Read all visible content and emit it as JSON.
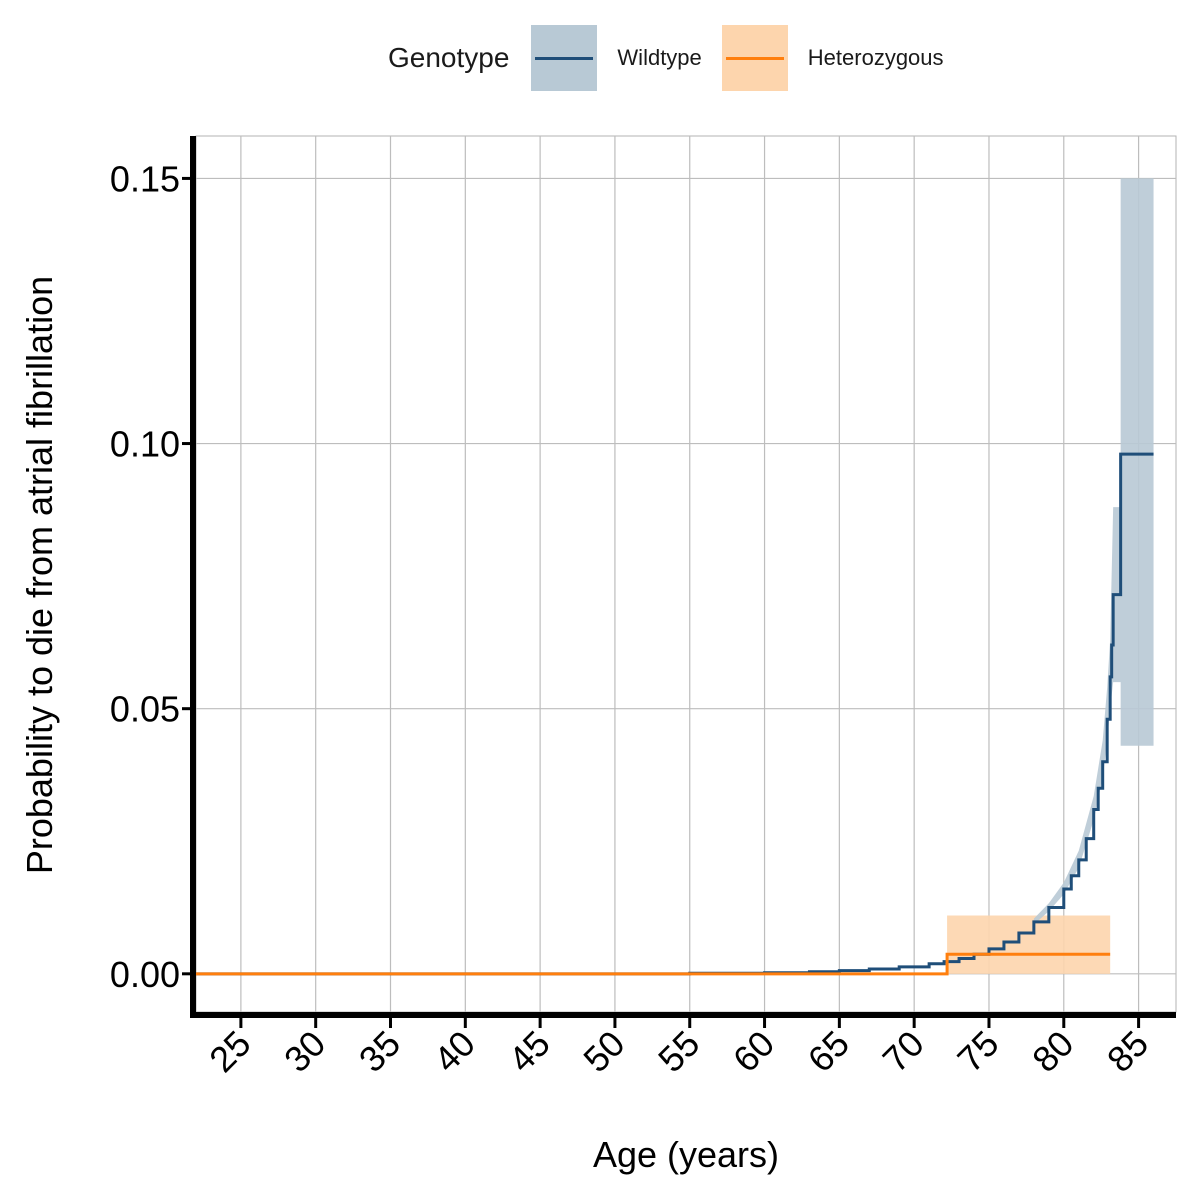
{
  "chart_data": {
    "type": "line",
    "xlabel": "Age (years)",
    "ylabel": "Probability to die from atrial fibrillation",
    "xlim": [
      22,
      87.5
    ],
    "ylim": [
      -0.0072,
      0.158
    ],
    "x_ticks": [
      25,
      30,
      35,
      40,
      45,
      50,
      55,
      60,
      65,
      70,
      75,
      80,
      85
    ],
    "y_ticks": [
      0.0,
      0.05,
      0.1,
      0.15
    ],
    "y_tick_labels": [
      "0.00",
      "0.05",
      "0.10",
      "0.15"
    ],
    "grid": true,
    "legend": {
      "title": "Genotype",
      "position": "top"
    },
    "series": [
      {
        "name": "Wildtype",
        "color": "#1f4e79",
        "ribbon_color": "#b8c9d5",
        "step": true,
        "points": [
          [
            22,
            0.0
          ],
          [
            50,
            0.0
          ],
          [
            55,
            0.0001
          ],
          [
            60,
            0.0002
          ],
          [
            63,
            0.0004
          ],
          [
            65,
            0.0006
          ],
          [
            67,
            0.0009
          ],
          [
            69,
            0.0013
          ],
          [
            71,
            0.0019
          ],
          [
            72,
            0.0023
          ],
          [
            73,
            0.0029
          ],
          [
            74,
            0.0037
          ],
          [
            75,
            0.0047
          ],
          [
            76,
            0.006
          ],
          [
            77,
            0.0077
          ],
          [
            78,
            0.0098
          ],
          [
            79,
            0.0125
          ],
          [
            80,
            0.016
          ],
          [
            80.5,
            0.0185
          ],
          [
            81,
            0.0215
          ],
          [
            81.5,
            0.0255
          ],
          [
            82,
            0.031
          ],
          [
            82.3,
            0.035
          ],
          [
            82.6,
            0.04
          ],
          [
            82.9,
            0.048
          ],
          [
            83.1,
            0.056
          ],
          [
            83.2,
            0.062
          ],
          [
            83.3,
            0.0715
          ],
          [
            83.8,
            0.0715
          ],
          [
            83.8,
            0.098
          ],
          [
            86,
            0.098
          ]
        ],
        "ci_lower": [
          [
            78,
            0.0093
          ],
          [
            79,
            0.0118
          ],
          [
            80,
            0.015
          ],
          [
            81,
            0.02
          ],
          [
            82,
            0.029
          ],
          [
            82.6,
            0.037
          ],
          [
            82.9,
            0.044
          ],
          [
            83.1,
            0.05
          ],
          [
            83.3,
            0.055
          ],
          [
            83.8,
            0.055
          ],
          [
            83.8,
            0.043
          ],
          [
            86,
            0.043
          ]
        ],
        "ci_upper": [
          [
            78,
            0.0104
          ],
          [
            79,
            0.0133
          ],
          [
            80,
            0.0172
          ],
          [
            81,
            0.0232
          ],
          [
            82,
            0.0335
          ],
          [
            82.6,
            0.044
          ],
          [
            82.9,
            0.054
          ],
          [
            83.1,
            0.063
          ],
          [
            83.3,
            0.088
          ],
          [
            83.8,
            0.088
          ],
          [
            83.8,
            0.15
          ],
          [
            86,
            0.15
          ]
        ]
      },
      {
        "name": "Heterozygous",
        "color": "#ff7f0e",
        "ribbon_color": "#fdd5ad",
        "step": true,
        "points": [
          [
            22,
            0.0
          ],
          [
            72.2,
            0.0
          ],
          [
            72.2,
            0.0037
          ],
          [
            83.1,
            0.0037
          ]
        ],
        "ci_lower": [
          [
            72.2,
            0.0
          ],
          [
            83.1,
            0.0
          ]
        ],
        "ci_upper": [
          [
            72.2,
            0.011
          ],
          [
            83.1,
            0.011
          ]
        ]
      }
    ]
  }
}
